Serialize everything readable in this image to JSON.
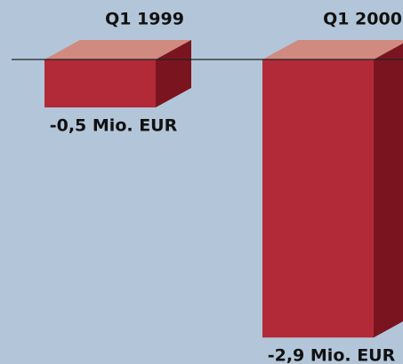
{
  "chart_data": {
    "type": "bar3d",
    "categories": [
      "Q1 1999",
      "Q1 2000"
    ],
    "values": [
      -0.5,
      -2.9
    ],
    "value_labels": [
      "-0,5 Mio. EUR",
      "-2,9 Mio. EUR"
    ],
    "colors": {
      "front": "#b22a38",
      "top": "#d08a80",
      "side": "#7a1520"
    },
    "ylim": [
      -3,
      0
    ]
  }
}
